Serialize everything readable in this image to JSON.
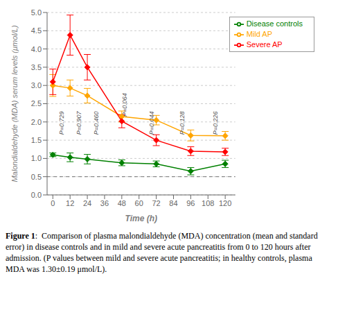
{
  "chart_data": {
    "type": "line",
    "xlabel": "Time (h)",
    "ylabel": "Malondialdehyde (MDA) serum levels  (μmol/L)",
    "x": [
      0,
      12,
      24,
      48,
      72,
      96,
      120
    ],
    "series": [
      {
        "name": "Disease controls",
        "color": "#008000",
        "marker": "diamond",
        "values": [
          1.1,
          1.03,
          0.98,
          0.88,
          0.85,
          0.65,
          0.85
        ],
        "yerr": [
          0.05,
          0.12,
          0.13,
          0.08,
          0.08,
          0.1,
          0.1
        ]
      },
      {
        "name": "Mild AP",
        "color": "#FFA500",
        "marker": "diamond",
        "values": [
          3.0,
          2.93,
          2.72,
          2.15,
          2.05,
          1.63,
          1.62
        ],
        "yerr": [
          0.3,
          0.22,
          0.2,
          0.15,
          0.13,
          0.15,
          0.12
        ]
      },
      {
        "name": "Severe AP",
        "color": "#FF0000",
        "marker": "diamond",
        "values": [
          3.1,
          4.38,
          3.5,
          2.02,
          1.5,
          1.2,
          1.18
        ],
        "yerr": [
          0.35,
          0.55,
          0.35,
          0.18,
          0.15,
          0.12,
          0.1
        ]
      }
    ],
    "xlim": [
      -4,
      127
    ],
    "xticks": [
      0,
      12,
      24,
      36,
      48,
      60,
      72,
      84,
      96,
      108,
      120
    ],
    "ylim": [
      0.0,
      5.0
    ],
    "yticks": [
      {
        "value": 0,
        "label": "0.0"
      },
      0.5,
      {
        "value": 1,
        "label": "1.0"
      },
      1.5,
      {
        "value": 2,
        "label": "2.0"
      },
      2.5,
      {
        "value": 3,
        "label": "3.0"
      },
      3.5,
      {
        "value": 4,
        "label": "4.0"
      },
      4.5,
      {
        "value": 5,
        "label": "5.0"
      }
    ],
    "hlines": [
      {
        "y": 0.5,
        "color": "#777777",
        "line_style": "dashed"
      }
    ],
    "annotations": [
      {
        "x": 6,
        "y": 1.65,
        "text": "P=0.729"
      },
      {
        "x": 18,
        "y": 1.65,
        "text": "P=0.907"
      },
      {
        "x": 30,
        "y": 1.65,
        "text": "P=0.460"
      },
      {
        "x": 50,
        "y": 2.15,
        "text": "P=0.064"
      },
      {
        "x": 69,
        "y": 1.65,
        "text": "P=0.044"
      },
      {
        "x": 90,
        "y": 1.65,
        "text": "P=0.128"
      },
      {
        "x": 113,
        "y": 1.65,
        "text": "P=0.226"
      }
    ],
    "grid": "y",
    "legend": "upper right",
    "caption_bold": "Figure 1",
    "caption": ":  Comparison of plasma malondialdehyde (MDA) concentration (mean and standard error) in disease controls and in mild and severe acute pancreatitis from 0 to 120 hours after admission. (P values between mild and severe acute pancreatitis; in healthy controls, plasma MDA was 1.30±0.19 μmol/L)."
  }
}
